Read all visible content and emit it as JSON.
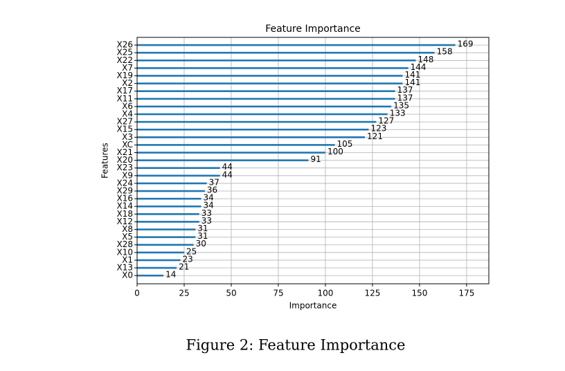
{
  "chart_data": {
    "type": "barh",
    "title": "Feature Importance",
    "xlabel": "Importance",
    "ylabel": "Features",
    "categories": [
      "X26",
      "X25",
      "X22",
      "X7",
      "X19",
      "X2",
      "X17",
      "X11",
      "X6",
      "X4",
      "X27",
      "X15",
      "X3",
      "XC",
      "X21",
      "X20",
      "X23",
      "X9",
      "X24",
      "X29",
      "X16",
      "X14",
      "X18",
      "X12",
      "X8",
      "X5",
      "X28",
      "X10",
      "X1",
      "X13",
      "X0"
    ],
    "values": [
      169,
      158,
      148,
      144,
      141,
      141,
      137,
      137,
      135,
      133,
      127,
      123,
      121,
      105,
      100,
      91,
      44,
      44,
      37,
      36,
      34,
      34,
      33,
      33,
      31,
      31,
      30,
      25,
      23,
      21,
      14
    ],
    "color": "#1f77b4",
    "xlim": [
      0,
      186.8
    ],
    "xticks": [
      0,
      25,
      50,
      75,
      100,
      125,
      150,
      175
    ],
    "grid": true,
    "caption": "Figure 2: Feature Importance"
  }
}
